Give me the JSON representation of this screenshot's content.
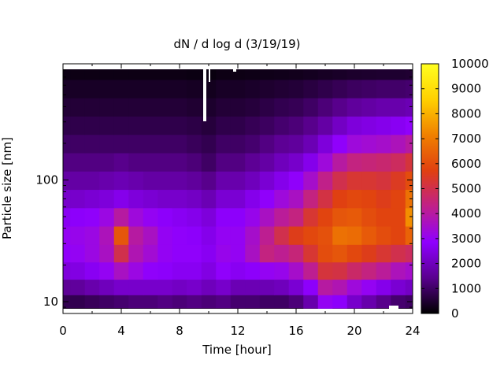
{
  "chart_data": {
    "type": "heatmap",
    "title": "dN / d log d (3/19/19)",
    "xlabel": "Time [hour]",
    "ylabel": "Particle size [nm]",
    "xlim": [
      0,
      24
    ],
    "ylim": [
      8,
      900
    ],
    "y_scale": "log",
    "x_ticks": [
      0,
      4,
      8,
      12,
      16,
      20,
      24
    ],
    "x_tick_labels": [
      "0",
      "4",
      "8",
      "12",
      "16",
      "20",
      "24"
    ],
    "y_ticks": [
      10,
      100
    ],
    "y_tick_labels": [
      "10",
      "100"
    ],
    "colorbar": {
      "range": [
        0,
        10000
      ],
      "ticks": [
        0,
        1000,
        2000,
        3000,
        4000,
        5000,
        6000,
        7000,
        8000,
        9000,
        10000
      ],
      "tick_labels": [
        "0",
        "1000",
        "2000",
        "3000",
        "4000",
        "5000",
        "6000",
        "7000",
        "8000",
        "9000",
        "10000"
      ],
      "colormap": "gnuplot-pm3d",
      "colors": [
        "#000000",
        "#5a008f",
        "#8f00ff",
        "#c0208a",
        "#e04010",
        "#f08000",
        "#ffd000",
        "#ffff20"
      ]
    },
    "x_hours": [
      0,
      1,
      2,
      3,
      4,
      5,
      6,
      7,
      8,
      9,
      10,
      11,
      12,
      13,
      14,
      15,
      16,
      17,
      18,
      19,
      20,
      21,
      22,
      23,
      24
    ],
    "y_sizes_nm": [
      8,
      10,
      13,
      18,
      25,
      35,
      50,
      70,
      100,
      140,
      200,
      280,
      400,
      560,
      800
    ],
    "z_values": [
      [
        300,
        300,
        300,
        300,
        300,
        500,
        500,
        600,
        600,
        600,
        600,
        600,
        600,
        500,
        500,
        500,
        400,
        1200,
        2400,
        1800,
        1200,
        900,
        600,
        400,
        300
      ],
      [
        800,
        800,
        900,
        1000,
        1100,
        1200,
        1200,
        1300,
        1200,
        1300,
        1200,
        1300,
        1100,
        1100,
        1000,
        1000,
        1200,
        1800,
        3000,
        2800,
        2200,
        1800,
        1400,
        1100,
        1000
      ],
      [
        1500,
        1600,
        1800,
        2000,
        2200,
        2200,
        2200,
        2200,
        2100,
        2200,
        2000,
        2200,
        1900,
        1900,
        1900,
        2000,
        2300,
        2800,
        4000,
        3800,
        3300,
        3000,
        2600,
        2300,
        2100
      ],
      [
        2400,
        2500,
        2700,
        3000,
        3600,
        3200,
        2900,
        2800,
        2700,
        2700,
        2500,
        2900,
        2700,
        2800,
        3000,
        3100,
        3500,
        4200,
        5200,
        5100,
        4700,
        4400,
        4100,
        3700,
        3500
      ],
      [
        2900,
        3000,
        3200,
        3600,
        5000,
        3800,
        3400,
        3000,
        2900,
        2900,
        2700,
        3100,
        3000,
        3600,
        4400,
        4200,
        4500,
        5300,
        6000,
        6200,
        5900,
        5600,
        5300,
        5000,
        4800
      ],
      [
        3000,
        3100,
        3200,
        3700,
        6200,
        4000,
        3600,
        3000,
        2900,
        2800,
        2600,
        3000,
        3000,
        3500,
        4200,
        5000,
        5600,
        5900,
        6100,
        6800,
        6700,
        6300,
        6000,
        5800,
        6500
      ],
      [
        2700,
        2800,
        2900,
        3200,
        4000,
        3300,
        3000,
        2800,
        2700,
        2600,
        2400,
        2800,
        2800,
        3100,
        3600,
        4100,
        4400,
        5300,
        5800,
        6200,
        6300,
        6000,
        5800,
        5800,
        7400
      ],
      [
        2200,
        2200,
        2300,
        2400,
        2600,
        2400,
        2300,
        2200,
        2200,
        2100,
        1900,
        2300,
        2300,
        2600,
        2900,
        3300,
        3600,
        4400,
        5100,
        5700,
        5900,
        5800,
        5600,
        5800,
        6800
      ],
      [
        1700,
        1700,
        1700,
        1800,
        1900,
        1800,
        1700,
        1700,
        1700,
        1600,
        1400,
        1800,
        1800,
        2000,
        2300,
        2600,
        2900,
        3500,
        4300,
        5000,
        5300,
        5300,
        5200,
        5500,
        6000
      ],
      [
        1300,
        1300,
        1300,
        1300,
        1400,
        1300,
        1300,
        1300,
        1300,
        1200,
        1000,
        1300,
        1300,
        1500,
        1700,
        2000,
        2200,
        2600,
        3300,
        4000,
        4400,
        4500,
        4600,
        4800,
        5200
      ],
      [
        1000,
        1000,
        1000,
        1000,
        1000,
        1000,
        1000,
        1000,
        1000,
        900,
        800,
        1000,
        1000,
        1100,
        1300,
        1500,
        1600,
        1900,
        2400,
        2900,
        3300,
        3400,
        3500,
        3700,
        4000
      ],
      [
        750,
        750,
        750,
        750,
        750,
        750,
        750,
        750,
        750,
        700,
        600,
        750,
        750,
        850,
        950,
        1100,
        1200,
        1400,
        1700,
        2100,
        2400,
        2500,
        2600,
        2700,
        2900
      ],
      [
        550,
        550,
        550,
        550,
        550,
        550,
        550,
        550,
        550,
        500,
        450,
        550,
        550,
        600,
        700,
        800,
        850,
        1000,
        1200,
        1400,
        1600,
        1700,
        1800,
        1800,
        1900
      ],
      [
        380,
        380,
        380,
        380,
        380,
        380,
        380,
        380,
        380,
        350,
        300,
        380,
        380,
        420,
        470,
        520,
        560,
        650,
        750,
        850,
        950,
        1000,
        1050,
        1050,
        1100
      ],
      [
        200,
        200,
        200,
        200,
        200,
        200,
        200,
        200,
        200,
        180,
        150,
        200,
        200,
        220,
        240,
        260,
        280,
        320,
        360,
        400,
        440,
        460,
        480,
        480,
        500
      ]
    ]
  }
}
